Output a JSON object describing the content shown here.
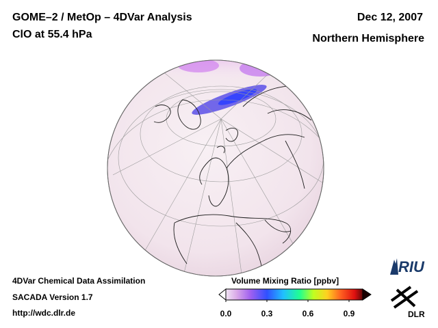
{
  "header": {
    "title_line1": "GOME–2 / MetOp – 4DVar Analysis",
    "title_line2": "ClO at 55.4 hPa",
    "date": "Dec 12, 2007",
    "region": "Northern Hemisphere"
  },
  "footer": {
    "line1": "4DVar Chemical Data Assimilation",
    "line2": "SACADA Version 1.7",
    "line3": "http://wdc.dlr.de"
  },
  "colorbar": {
    "title": "Volume Mixing Ratio [ppbv]",
    "ticks": [
      "0.0",
      "0.3",
      "0.6",
      "0.9"
    ],
    "colors": [
      "#f2e6f4",
      "#d9a8e8",
      "#a060f0",
      "#3050ff",
      "#20c0ff",
      "#20ff90",
      "#c0ff20",
      "#ffd020",
      "#ff6020",
      "#e01010",
      "#600808"
    ]
  },
  "logos": {
    "riu": "RIU",
    "dlr": "DLR"
  },
  "icons": {
    "riu_logo": "riu-logo-icon",
    "dlr_logo": "dlr-logo-icon"
  }
}
